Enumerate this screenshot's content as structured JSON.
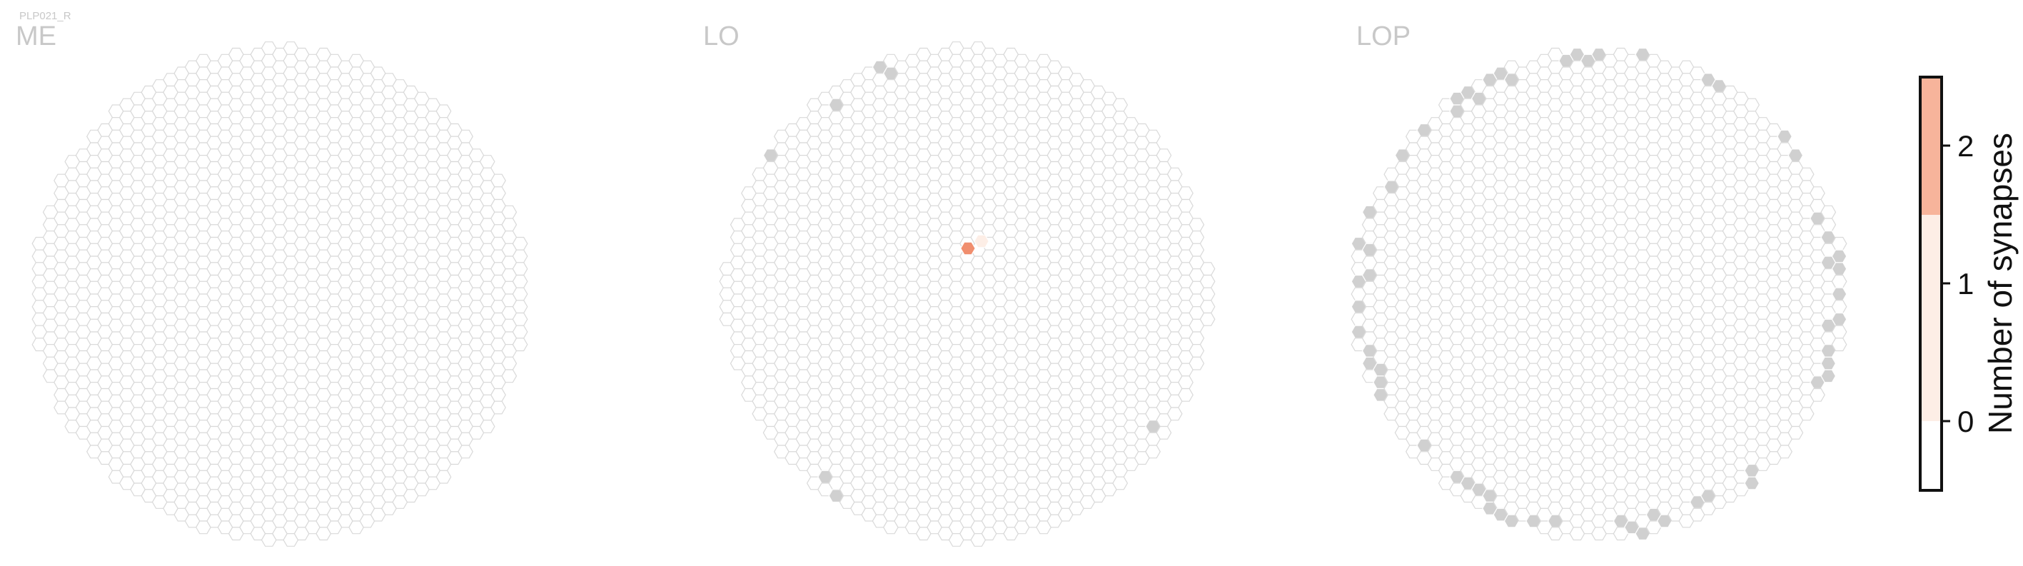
{
  "neuron_label": "PLP021_R",
  "panels": [
    {
      "region": "ME"
    },
    {
      "region": "LO"
    },
    {
      "region": "LOP"
    }
  ],
  "colors": {
    "column_outline": "#d9d9d9",
    "column_fill": "#ffffff",
    "no_data": "#d0d0d0",
    "synapses_0": "#ffffff",
    "synapses_1": "#fdeee6",
    "synapses_2": "#f7b49b",
    "highlight_cell": "#f08e6e"
  },
  "colorbar": {
    "title": "Number of synapses",
    "ticks": [
      "0",
      "1",
      "2"
    ],
    "range": [
      0,
      2
    ]
  },
  "chart_data": {
    "type": "heatmap",
    "title": "PLP021_R",
    "colorbar_label": "Number of synapses",
    "colorbar_ticks": [
      0,
      1,
      2
    ],
    "panels": [
      {
        "region": "ME",
        "max_synapses_per_column": 0
      },
      {
        "region": "LO",
        "max_synapses_per_column": 2,
        "columns_with_synapses": [
          {
            "synapses": 2
          },
          {
            "synapses": 1
          }
        ]
      },
      {
        "region": "LOP",
        "max_synapses_per_column": 0
      }
    ]
  }
}
